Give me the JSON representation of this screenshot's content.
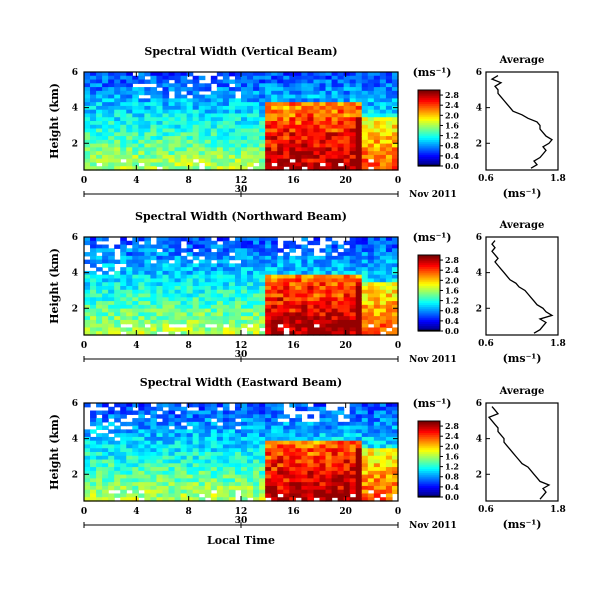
{
  "chart_data": [
    {
      "type": "heatmap",
      "title": "Spectral Width (Vertical Beam)",
      "ylabel": "Height (km)",
      "y_ticks": [
        "2",
        "4",
        "6"
      ],
      "ylim": [
        0.5,
        6
      ],
      "x_ticks": [
        "0",
        "4",
        "8",
        "12",
        "16",
        "20",
        "0"
      ],
      "date_tick": "30",
      "date_label": "Nov 2011",
      "colorbar_unit": "(ms⁻¹)",
      "colorbar_ticks": [
        "0.0",
        "0.4",
        "0.8",
        "1.2",
        "1.6",
        "2.0",
        "2.4",
        "2.8"
      ],
      "zlim": [
        0,
        3
      ],
      "average": {
        "title": "Average",
        "xlabel": "(ms⁻¹)",
        "x_ticks": [
          "0.6",
          "1.8"
        ],
        "xlim": [
          0.6,
          1.8
        ],
        "y_ticks": [
          "2",
          "4",
          "6"
        ],
        "height_km": [
          0.6,
          0.8,
          1.0,
          1.2,
          1.4,
          1.6,
          1.8,
          2.0,
          2.2,
          2.4,
          2.6,
          2.8,
          3.0,
          3.2,
          3.4,
          3.6,
          3.8,
          4.0,
          4.2,
          4.4,
          4.6,
          4.8,
          5.0,
          5.2,
          5.4,
          5.6,
          5.8
        ],
        "width_ms": [
          1.35,
          1.45,
          1.4,
          1.5,
          1.55,
          1.6,
          1.55,
          1.65,
          1.7,
          1.6,
          1.55,
          1.5,
          1.5,
          1.45,
          1.3,
          1.2,
          1.05,
          1.0,
          0.95,
          0.9,
          0.85,
          0.8,
          0.8,
          0.75,
          0.85,
          0.7,
          0.8
        ]
      }
    },
    {
      "type": "heatmap",
      "title": "Spectral Width (Northward Beam)",
      "ylabel": "Height (km)",
      "y_ticks": [
        "2",
        "4",
        "6"
      ],
      "ylim": [
        0.5,
        6
      ],
      "x_ticks": [
        "0",
        "4",
        "8",
        "12",
        "16",
        "20",
        "0"
      ],
      "date_tick": "30",
      "date_label": "Nov 2011",
      "colorbar_unit": "(ms⁻¹)",
      "colorbar_ticks": [
        "0.0",
        "0.4",
        "0.8",
        "1.2",
        "1.6",
        "2.0",
        "2.4",
        "2.8"
      ],
      "zlim": [
        0,
        3
      ],
      "average": {
        "title": "Average",
        "xlabel": "(ms⁻¹)",
        "x_ticks": [
          "0.6",
          "1.8"
        ],
        "xlim": [
          0.6,
          1.8
        ],
        "y_ticks": [
          "2",
          "4",
          "6"
        ],
        "height_km": [
          0.6,
          0.8,
          1.0,
          1.2,
          1.4,
          1.6,
          1.8,
          2.0,
          2.2,
          2.4,
          2.6,
          2.8,
          3.0,
          3.2,
          3.4,
          3.6,
          3.8,
          4.0,
          4.2,
          4.4,
          4.6,
          4.8,
          5.0,
          5.2,
          5.4,
          5.6,
          5.8
        ],
        "width_ms": [
          1.4,
          1.5,
          1.55,
          1.6,
          1.5,
          1.7,
          1.6,
          1.55,
          1.45,
          1.4,
          1.35,
          1.3,
          1.25,
          1.15,
          1.1,
          1.0,
          0.95,
          0.9,
          0.85,
          0.8,
          0.75,
          0.8,
          0.75,
          0.7,
          0.75,
          0.7,
          0.75
        ]
      }
    },
    {
      "type": "heatmap",
      "title": "Spectral Width (Eastward Beam)",
      "ylabel": "Height (km)",
      "y_ticks": [
        "2",
        "4",
        "6"
      ],
      "ylim": [
        0.5,
        6
      ],
      "x_ticks": [
        "0",
        "4",
        "8",
        "12",
        "16",
        "20",
        "0"
      ],
      "date_tick": "30",
      "date_label": "Nov 2011",
      "xlabel": "Local Time",
      "colorbar_unit": "(ms⁻¹)",
      "colorbar_ticks": [
        "0.0",
        "0.4",
        "0.8",
        "1.2",
        "1.6",
        "2.0",
        "2.4",
        "2.8"
      ],
      "zlim": [
        0,
        3
      ],
      "average": {
        "title": "Average",
        "xlabel": "(ms⁻¹)",
        "x_ticks": [
          "0.6",
          "1.8"
        ],
        "xlim": [
          0.6,
          1.8
        ],
        "y_ticks": [
          "2",
          "4",
          "6"
        ],
        "height_km": [
          0.6,
          0.8,
          1.0,
          1.2,
          1.4,
          1.6,
          1.8,
          2.0,
          2.2,
          2.4,
          2.6,
          2.8,
          3.0,
          3.2,
          3.4,
          3.6,
          3.8,
          4.0,
          4.2,
          4.4,
          4.6,
          4.8,
          5.0,
          5.2,
          5.4,
          5.6,
          5.8
        ],
        "width_ms": [
          1.5,
          1.55,
          1.6,
          1.55,
          1.65,
          1.5,
          1.45,
          1.4,
          1.35,
          1.3,
          1.2,
          1.15,
          1.1,
          1.05,
          1.0,
          0.95,
          0.9,
          0.9,
          0.85,
          0.8,
          0.8,
          0.75,
          0.7,
          0.65,
          0.8,
          0.75,
          0.7
        ]
      }
    }
  ]
}
